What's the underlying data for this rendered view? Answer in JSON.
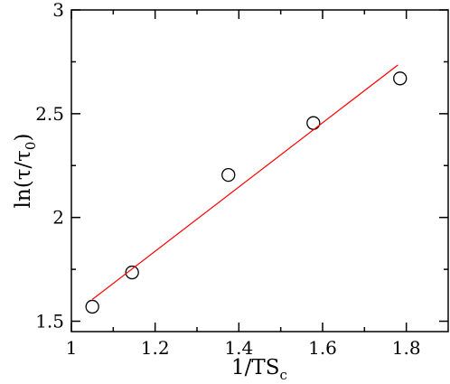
{
  "chart_data": {
    "type": "scatter",
    "xlabel": {
      "main": "1/TS",
      "sub": "c"
    },
    "ylabel": {
      "pre": "ln(τ/τ",
      "sub": "0",
      "post": ")"
    },
    "xlim": [
      1.0,
      1.9
    ],
    "ylim": [
      1.45,
      3.0
    ],
    "xticks": [
      1.0,
      1.2,
      1.4,
      1.6,
      1.8
    ],
    "xtick_labels": [
      "1",
      "1.2",
      "1.4",
      "1.6",
      "1.8"
    ],
    "yticks": [
      1.5,
      2.0,
      2.5,
      3.0
    ],
    "ytick_labels": [
      "1.5",
      "2",
      "2.5",
      "3"
    ],
    "series": [
      {
        "marker": "open-circle",
        "color": "#000000",
        "points": [
          {
            "x": 1.05,
            "y": 1.57
          },
          {
            "x": 1.145,
            "y": 1.735
          },
          {
            "x": 1.375,
            "y": 2.205
          },
          {
            "x": 1.578,
            "y": 2.455
          },
          {
            "x": 1.785,
            "y": 2.67
          }
        ]
      },
      {
        "type": "line",
        "color": "#ff0000",
        "points": [
          {
            "x": 1.05,
            "y": 1.605
          },
          {
            "x": 1.78,
            "y": 2.735
          }
        ]
      }
    ],
    "grid": false
  }
}
